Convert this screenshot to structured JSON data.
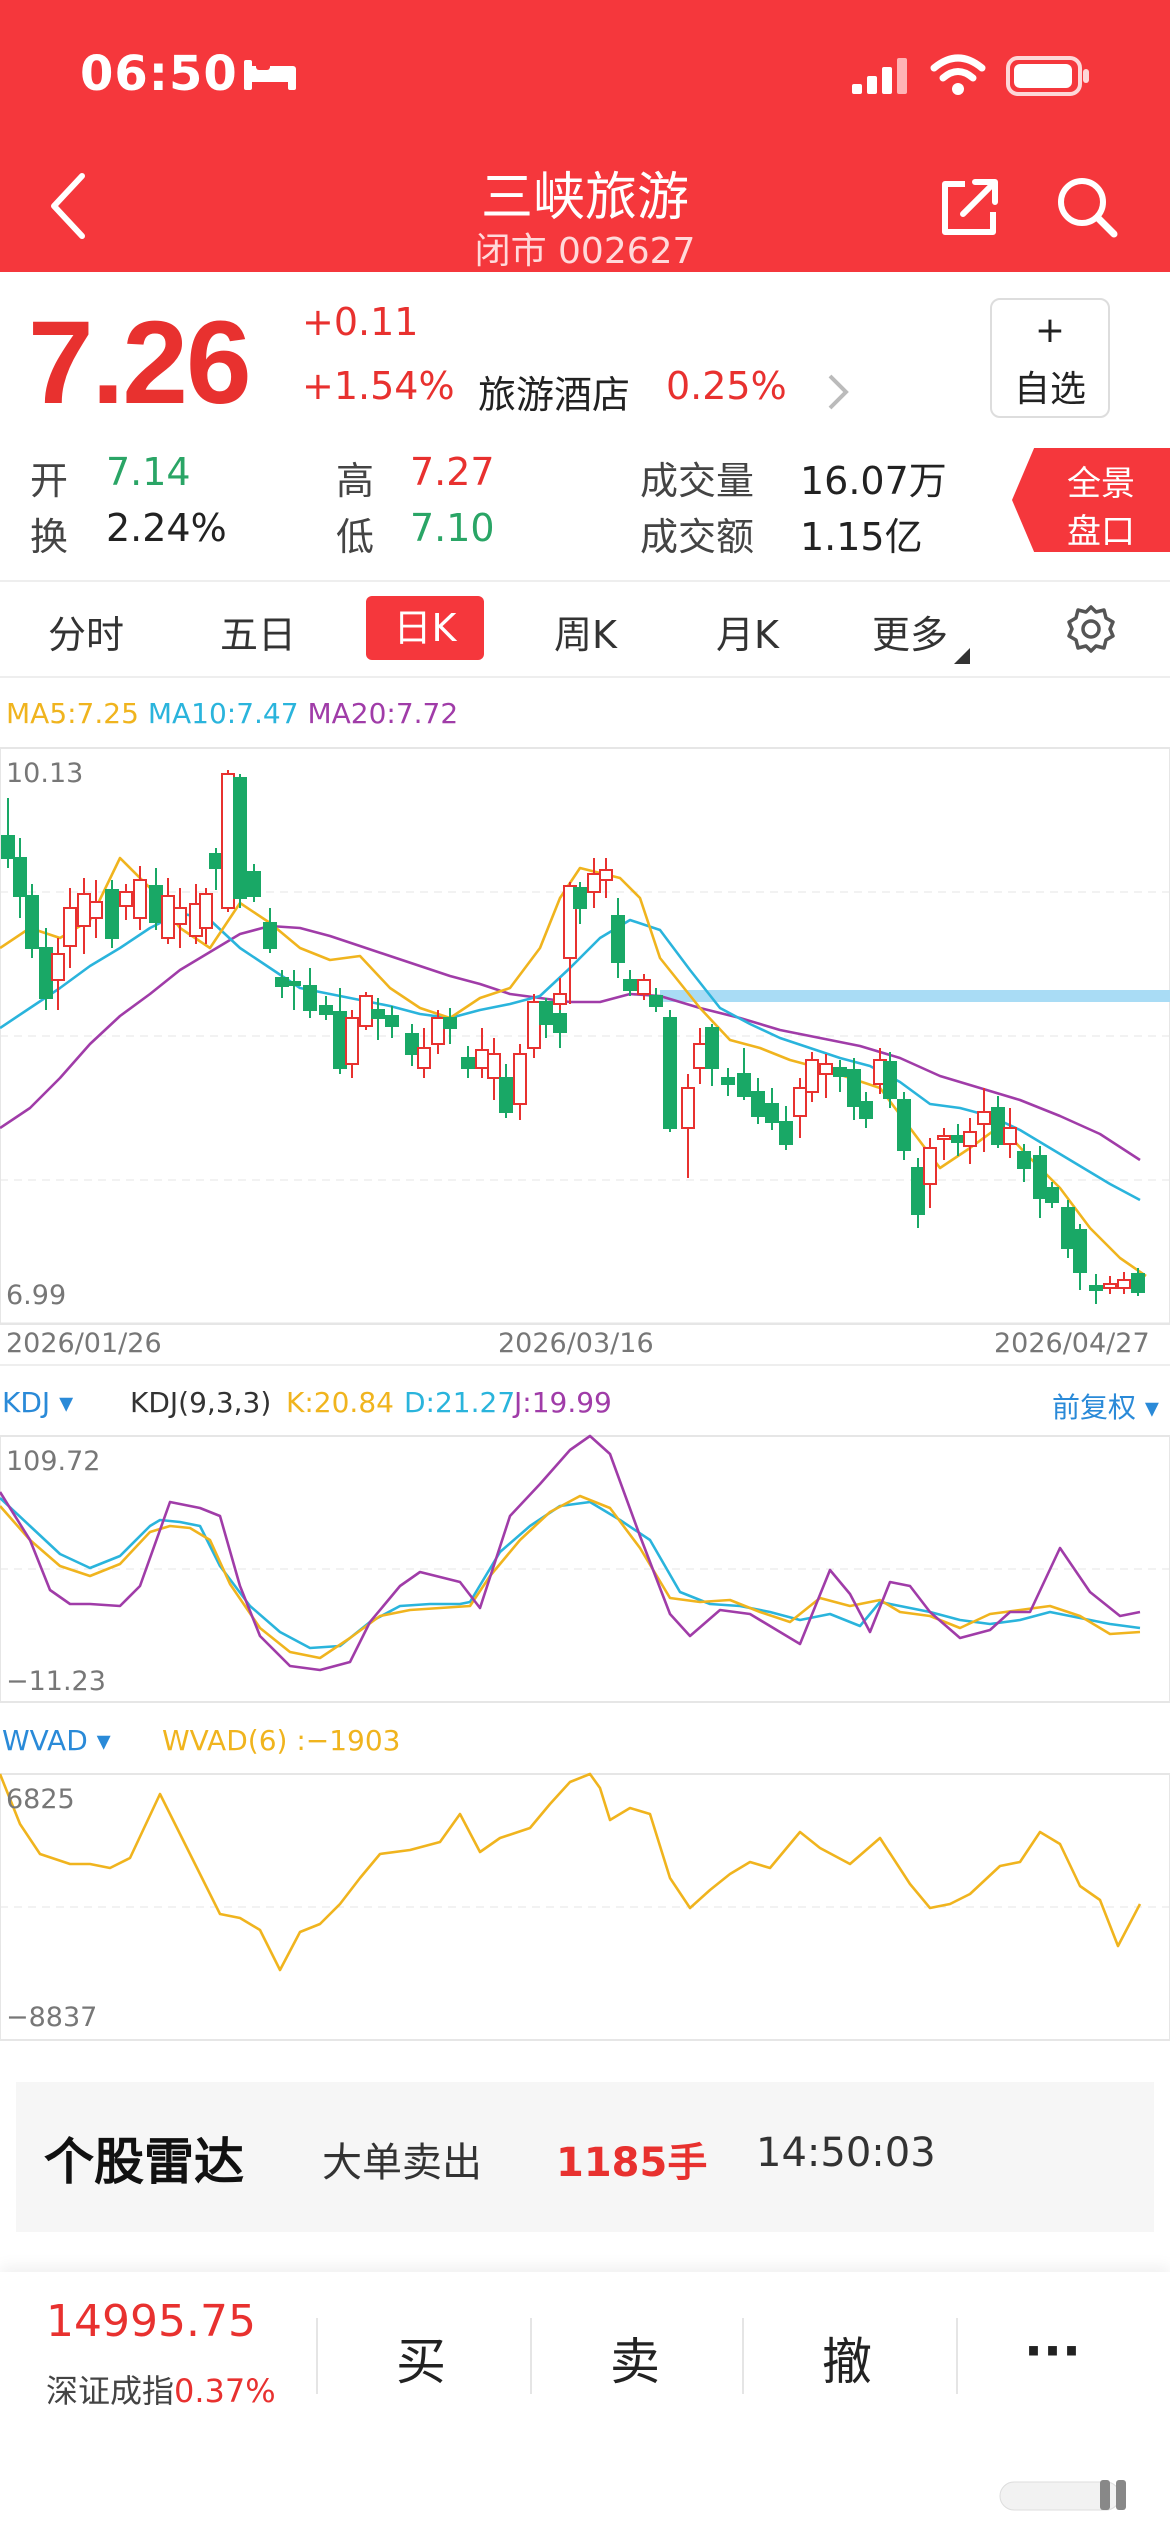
{
  "status_bar": {
    "time": "06:50"
  },
  "header": {
    "title": "三峡旅游",
    "subtitle": "闭市 002627"
  },
  "quote": {
    "price": "7.26",
    "change": "+0.11",
    "change_pct": "+1.54%",
    "industry": "旅游酒店",
    "industry_pct": "0.25%",
    "watch_plus": "+",
    "watch_label": "自选",
    "open_label": "开",
    "open": "7.14",
    "turnover_label": "换",
    "turnover": "2.24%",
    "high_label": "高",
    "high": "7.27",
    "low_label": "低",
    "low": "7.10",
    "volume_label": "成交量",
    "volume": "16.07万",
    "amount_label": "成交额",
    "amount": "1.15亿",
    "panorama_l1": "全景",
    "panorama_l2": "盘口"
  },
  "tabs": {
    "t1": "分时",
    "t2": "五日",
    "t3": "日K",
    "t4": "周K",
    "t5": "月K",
    "t6": "更多"
  },
  "kline": {
    "ma5": "MA5:7.25",
    "ma10": "MA10:7.47",
    "ma20": "MA20:7.72",
    "y_max": "10.13",
    "y_min": "6.99",
    "date_start": "2026/01/26",
    "date_mid": "2026/03/16",
    "date_end": "2026/04/27",
    "colors": {
      "up": "#e8312f",
      "down": "#19a866",
      "ma5": "#f0b41e",
      "ma10": "#2ab4dc",
      "ma20": "#a03ca8"
    }
  },
  "kdj": {
    "name": "KDJ",
    "params": "KDJ(9,3,3)",
    "k": "K:20.84",
    "d": "D:21.27",
    "j": "J:19.99",
    "fq": "前复权",
    "y_max": "109.72",
    "y_min": "−11.23"
  },
  "wvad": {
    "name": "WVAD",
    "params": "WVAD(6)",
    "value": ":−1903",
    "y_max": "6825",
    "y_min": "−8837"
  },
  "radar": {
    "title": "个股雷达",
    "type": "大单卖出",
    "volume": "1185手",
    "time": "14:50:03"
  },
  "bottom": {
    "index_value": "14995.75",
    "index_name": "深证成指",
    "index_pct": "0.37%",
    "buy": "买",
    "sell": "卖",
    "cancel": "撤",
    "more": "···"
  }
}
